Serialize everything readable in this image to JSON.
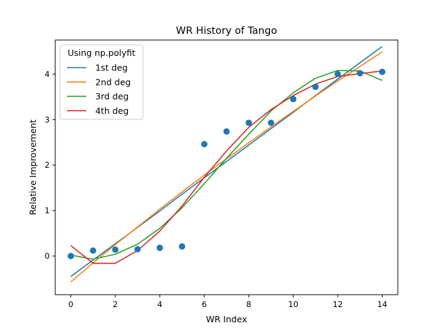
{
  "chart_data": {
    "type": "line",
    "title": "WR History of Tango",
    "xlabel": "WR Index",
    "ylabel": "Relative Improvement",
    "xlim": [
      -0.7,
      14.7
    ],
    "ylim": [
      -0.85,
      4.75
    ],
    "x_ticks": [
      0,
      2,
      4,
      6,
      8,
      10,
      12,
      14
    ],
    "y_ticks": [
      0,
      1,
      2,
      3,
      4
    ],
    "grid": false,
    "legend": {
      "title": "Using np.polyfit",
      "placement": "top-left"
    },
    "scatter": {
      "color": "#1f77b4",
      "x": [
        0,
        1,
        2,
        3,
        4,
        5,
        6,
        7,
        8,
        9,
        10,
        11,
        12,
        13,
        14
      ],
      "y": [
        0.0,
        0.12,
        0.14,
        0.15,
        0.18,
        0.21,
        2.46,
        2.74,
        2.93,
        2.93,
        3.45,
        3.72,
        4.0,
        4.02,
        4.05
      ]
    },
    "series": [
      {
        "name": "1st deg",
        "color": "#1f77b4",
        "x": [
          0,
          1,
          2,
          3,
          4,
          5,
          6,
          7,
          8,
          9,
          10,
          11,
          12,
          13,
          14
        ],
        "y": [
          -0.45,
          -0.09,
          0.27,
          0.63,
          0.99,
          1.36,
          1.72,
          2.08,
          2.44,
          2.8,
          3.16,
          3.53,
          3.89,
          4.25,
          4.61
        ]
      },
      {
        "name": "2nd deg",
        "color": "#ff7f0e",
        "x": [
          0,
          1,
          2,
          3,
          4,
          5,
          6,
          7,
          8,
          9,
          10,
          11,
          12,
          13,
          14
        ],
        "y": [
          -0.57,
          -0.15,
          0.25,
          0.64,
          1.03,
          1.41,
          1.78,
          2.14,
          2.49,
          2.84,
          3.18,
          3.52,
          3.85,
          4.17,
          4.49
        ]
      },
      {
        "name": "3rd deg",
        "color": "#2ca02c",
        "x": [
          0,
          1,
          2,
          3,
          4,
          5,
          6,
          7,
          8,
          9,
          10,
          11,
          12,
          13,
          14
        ],
        "y": [
          0.02,
          -0.07,
          0.04,
          0.26,
          0.61,
          1.06,
          1.59,
          2.15,
          2.68,
          3.19,
          3.59,
          3.91,
          4.08,
          4.07,
          3.86
        ]
      },
      {
        "name": "4th deg",
        "color": "#d62728",
        "x": [
          0,
          1,
          2,
          3,
          4,
          5,
          6,
          7,
          8,
          9,
          10,
          11,
          12,
          13,
          14
        ],
        "y": [
          0.23,
          -0.16,
          -0.16,
          0.12,
          0.55,
          1.1,
          1.73,
          2.31,
          2.83,
          3.22,
          3.53,
          3.78,
          3.95,
          4.01,
          4.07
        ]
      }
    ]
  }
}
